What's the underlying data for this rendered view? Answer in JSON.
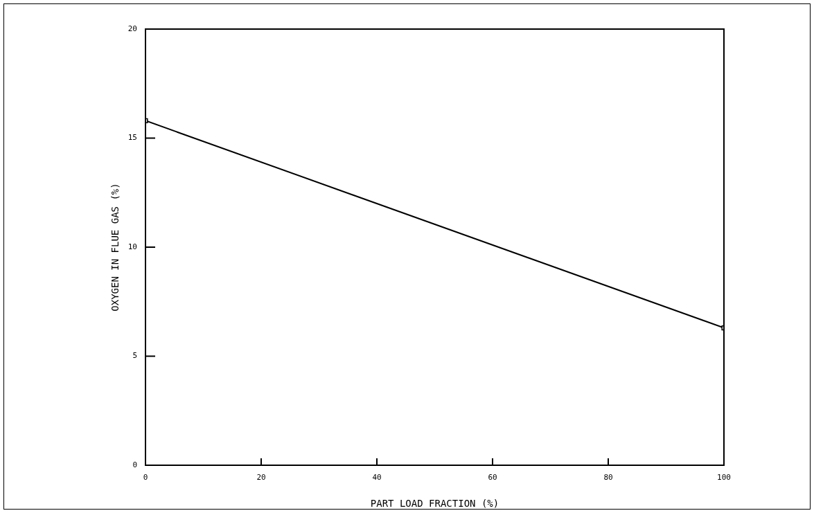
{
  "chart_data": {
    "type": "line",
    "xlabel": "PART LOAD FRACTION (%)",
    "ylabel": "OXYGEN IN FLUE GAS (%)",
    "x": [
      0,
      100
    ],
    "series": [
      {
        "color": "#000000",
        "values": [
          15.8,
          6.3
        ]
      }
    ],
    "xlim": [
      0,
      100
    ],
    "xticks": [
      0,
      20,
      40,
      60,
      80,
      100
    ],
    "ylim": [
      0,
      20
    ],
    "yticks": [
      0,
      5,
      10,
      15,
      20
    ],
    "grid": false,
    "legend": false,
    "marker": "square",
    "line_style": "solid"
  }
}
